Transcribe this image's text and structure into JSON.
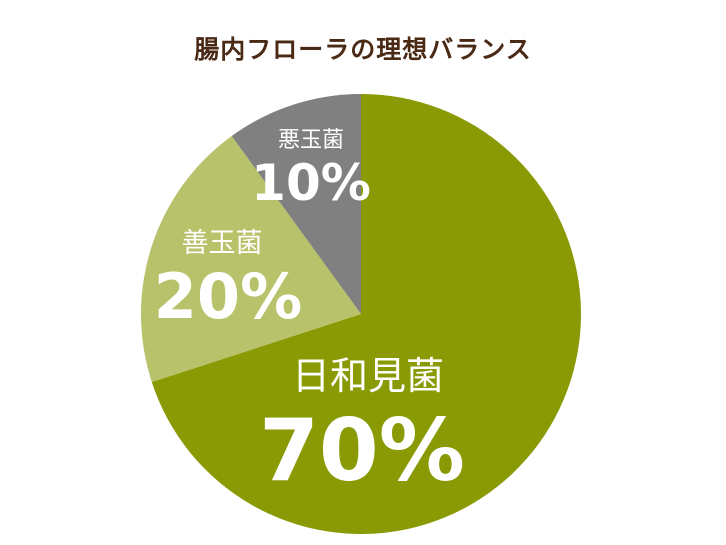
{
  "chart_data": {
    "type": "pie",
    "title": "腸内フローラの理想バランス",
    "start_angle_deg": 0,
    "direction": "clockwise",
    "slices": [
      {
        "label": "日和見菌",
        "value": 70,
        "display": "70%",
        "color": "#8a9a05"
      },
      {
        "label": "善玉菌",
        "value": 20,
        "display": "20%",
        "color": "#b8c26a"
      },
      {
        "label": "悪玉菌",
        "value": 10,
        "display": "10%",
        "color": "#808080"
      }
    ],
    "legend": false
  }
}
